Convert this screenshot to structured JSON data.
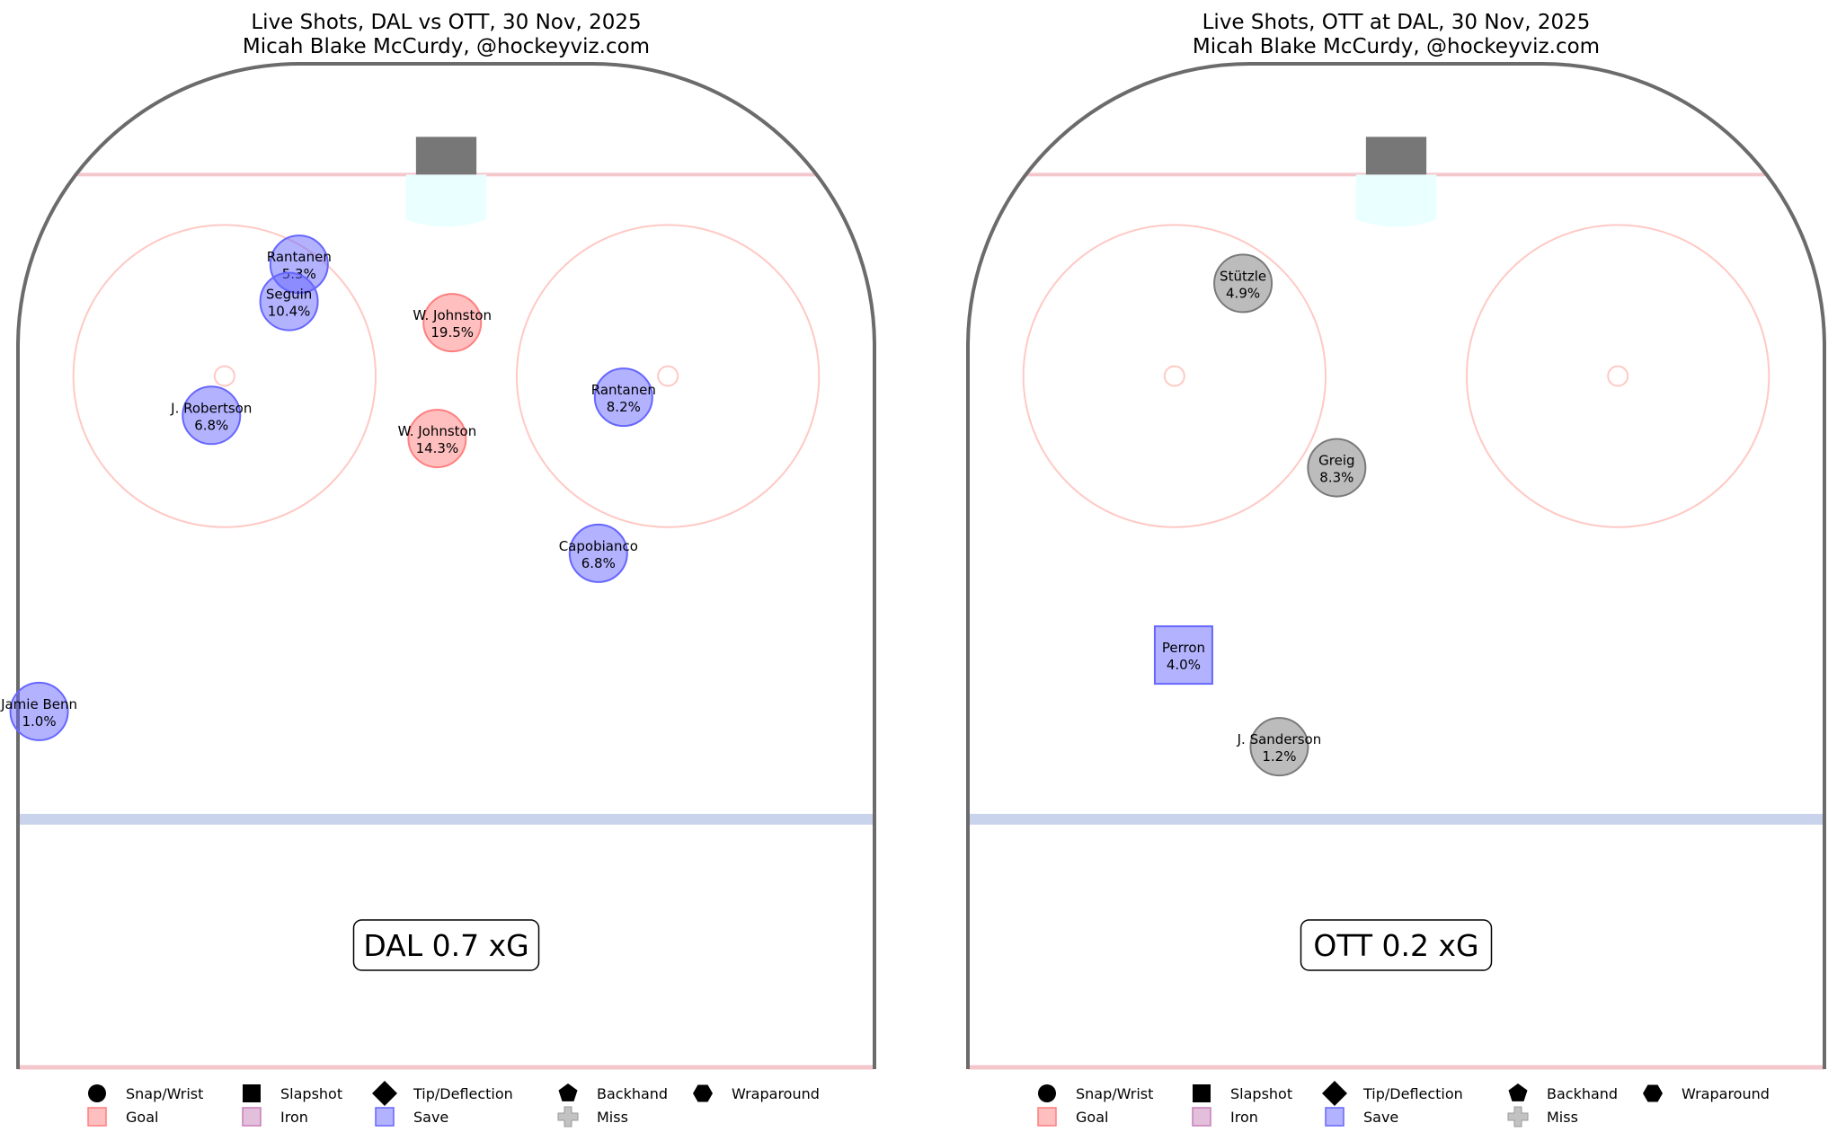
{
  "panels": [
    {
      "title_line1": "Live Shots, DAL vs OTT, 30 Nov, 2025",
      "title_line2": "Micah Blake McCurdy, @hockeyviz.com",
      "xg_label": "DAL 0.7 xG"
    },
    {
      "title_line1": "Live Shots, OTT at DAL, 30 Nov, 2025",
      "title_line2": "Micah Blake McCurdy, @hockeyviz.com",
      "xg_label": "OTT 0.2 xG"
    }
  ],
  "legend": {
    "shot_types": [
      {
        "label": "Snap/Wrist",
        "shape": "circle"
      },
      {
        "label": "Slapshot",
        "shape": "square"
      },
      {
        "label": "Tip/Deflection",
        "shape": "diamond"
      },
      {
        "label": "Backhand",
        "shape": "pentagon"
      },
      {
        "label": "Wraparound",
        "shape": "hexagon"
      }
    ],
    "outcomes": [
      {
        "label": "Goal",
        "shape": "square",
        "color": "#ff7f7f"
      },
      {
        "label": "Iron",
        "shape": "square",
        "color": "#c77fb8"
      },
      {
        "label": "Save",
        "shape": "square",
        "color": "#6666ff"
      },
      {
        "label": "Miss",
        "shape": "plus",
        "color": "#999999"
      }
    ]
  },
  "colors": {
    "goal": "#ff7f7f",
    "save": "#6666ff",
    "miss": "#7a7a7a",
    "iron": "#c77fb8",
    "board": "#6b6b6b",
    "goal_line": "#f4c7cc",
    "blue_line": "#c9d4ec",
    "crease": "#eaffff",
    "faceoff": "#ffc9c4"
  },
  "chart_data": [
    {
      "type": "scatter",
      "team": "DAL",
      "xg_total": 0.7,
      "shots": [
        {
          "player": "Rantanen",
          "xg": "5.3%",
          "outcome": "save",
          "shot_type": "Snap/Wrist",
          "x": -14.6,
          "y": 80.1
        },
        {
          "player": "Seguin",
          "xg": "10.4%",
          "outcome": "save",
          "shot_type": "Snap/Wrist",
          "x": -15.6,
          "y": 76.4
        },
        {
          "player": "W. Johnston",
          "xg": "19.5%",
          "outcome": "goal",
          "shot_type": "Snap/Wrist",
          "x": 0.6,
          "y": 74.3
        },
        {
          "player": "J. Robertson",
          "xg": "6.8%",
          "outcome": "save",
          "shot_type": "Snap/Wrist",
          "x": -23.3,
          "y": 65.1
        },
        {
          "player": "W. Johnston",
          "xg": "14.3%",
          "outcome": "goal",
          "shot_type": "Snap/Wrist",
          "x": -0.9,
          "y": 62.8
        },
        {
          "player": "Rantanen",
          "xg": "8.2%",
          "outcome": "save",
          "shot_type": "Snap/Wrist",
          "x": 17.6,
          "y": 66.9
        },
        {
          "player": "Capobianco",
          "xg": "6.8%",
          "outcome": "save",
          "shot_type": "Snap/Wrist",
          "x": 15.1,
          "y": 51.4
        },
        {
          "player": "Jamie Benn",
          "xg": "1.0%",
          "outcome": "save",
          "shot_type": "Snap/Wrist",
          "x": -40.4,
          "y": 35.7
        }
      ]
    },
    {
      "type": "scatter",
      "team": "OTT",
      "xg_total": 0.2,
      "shots": [
        {
          "player": "Stützle",
          "xg": "4.9%",
          "outcome": "miss",
          "shot_type": "Snap/Wrist",
          "x": -15.2,
          "y": 78.2
        },
        {
          "player": "Greig",
          "xg": "8.3%",
          "outcome": "miss",
          "shot_type": "Snap/Wrist",
          "x": -5.9,
          "y": 59.9
        },
        {
          "player": "Perron",
          "xg": "4.0%",
          "outcome": "save",
          "shot_type": "Slapshot",
          "x": -21.1,
          "y": 41.3
        },
        {
          "player": "J. Sanderson",
          "xg": "1.2%",
          "outcome": "miss",
          "shot_type": "Snap/Wrist",
          "x": -11.6,
          "y": 32.2
        }
      ]
    }
  ]
}
